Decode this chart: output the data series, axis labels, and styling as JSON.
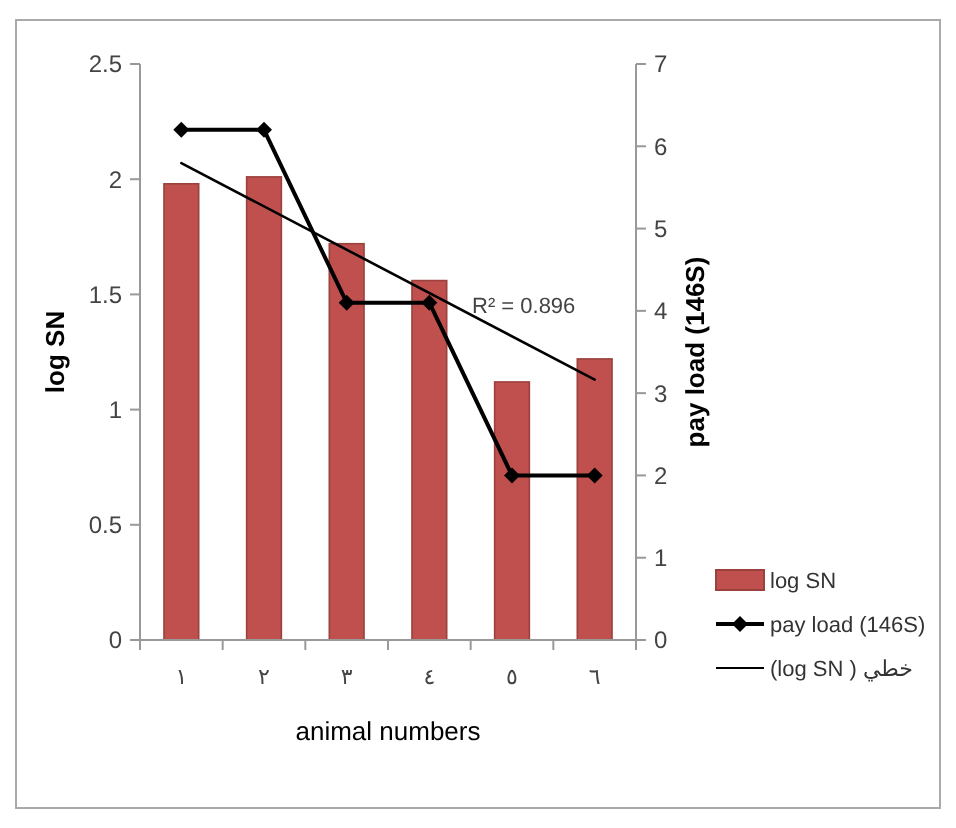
{
  "chart_data": {
    "type": "bar",
    "categories": [
      "١",
      "٢",
      "٣",
      "٤",
      "٥",
      "٦"
    ],
    "xlabel": "animal numbers",
    "ylabel": "log SN",
    "y2label": "pay load (146S)",
    "ylim": [
      0,
      2.5
    ],
    "yticks": [
      0,
      0.5,
      1,
      1.5,
      2,
      2.5
    ],
    "y2lim": [
      0,
      7
    ],
    "y2ticks": [
      0,
      1,
      2,
      3,
      4,
      5,
      6,
      7
    ],
    "legend": "right",
    "grid": false,
    "series": [
      {
        "name": "log SN",
        "color": "#c0504d",
        "values": [
          1.98,
          2.01,
          1.72,
          1.56,
          1.12,
          1.22
        ]
      },
      {
        "name": "pay load (146S)",
        "type": "line",
        "axis": "y2",
        "color": "#000000",
        "marker": "diamond",
        "values": [
          6.2,
          6.2,
          4.1,
          4.1,
          2,
          2
        ]
      },
      {
        "name": "(log SN ) خطي",
        "type": "line",
        "color": "#000000",
        "marker": "none",
        "x": [
          "١",
          "٦"
        ],
        "values": [
          2.07,
          1.13
        ]
      }
    ],
    "annotations": [
      "R² = 0.896"
    ]
  }
}
